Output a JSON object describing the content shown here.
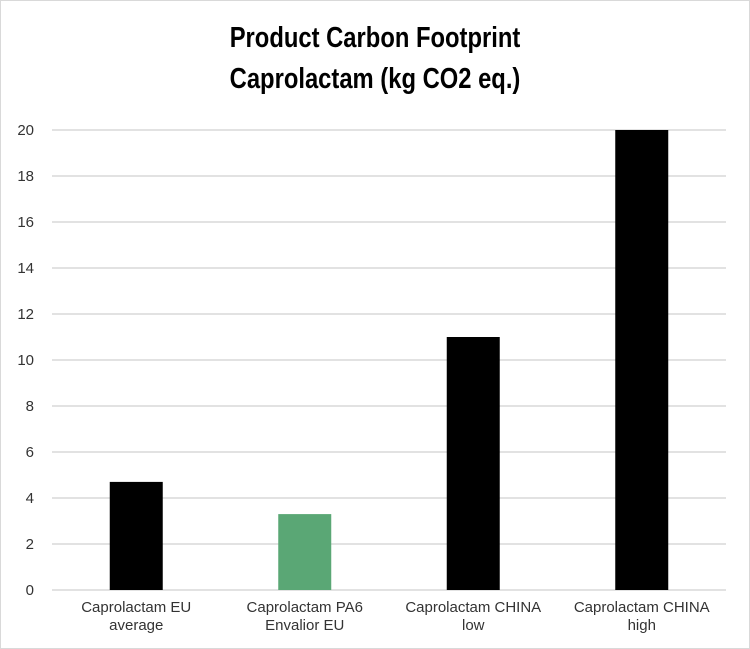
{
  "chart_data": {
    "type": "bar",
    "title_lines": [
      "Product Carbon Footprint",
      "Caprolactam (kg CO2 eq.)"
    ],
    "xlabel": "",
    "ylabel": "",
    "ylim": [
      0,
      20
    ],
    "yticks": [
      0,
      2,
      4,
      6,
      8,
      10,
      12,
      14,
      16,
      18,
      20
    ],
    "grid": true,
    "legend": "none",
    "categories": [
      [
        "Caprolactam EU",
        "average"
      ],
      [
        "Caprolactam PA6",
        "Envalior EU"
      ],
      [
        "Caprolactam CHINA",
        "low"
      ],
      [
        "Caprolactam CHINA",
        "high"
      ]
    ],
    "values": [
      4.7,
      3.3,
      11,
      20
    ],
    "bar_colors": [
      "#000000",
      "#5aa775",
      "#000000",
      "#000000"
    ],
    "gridline_color": "#d9d9d9"
  }
}
